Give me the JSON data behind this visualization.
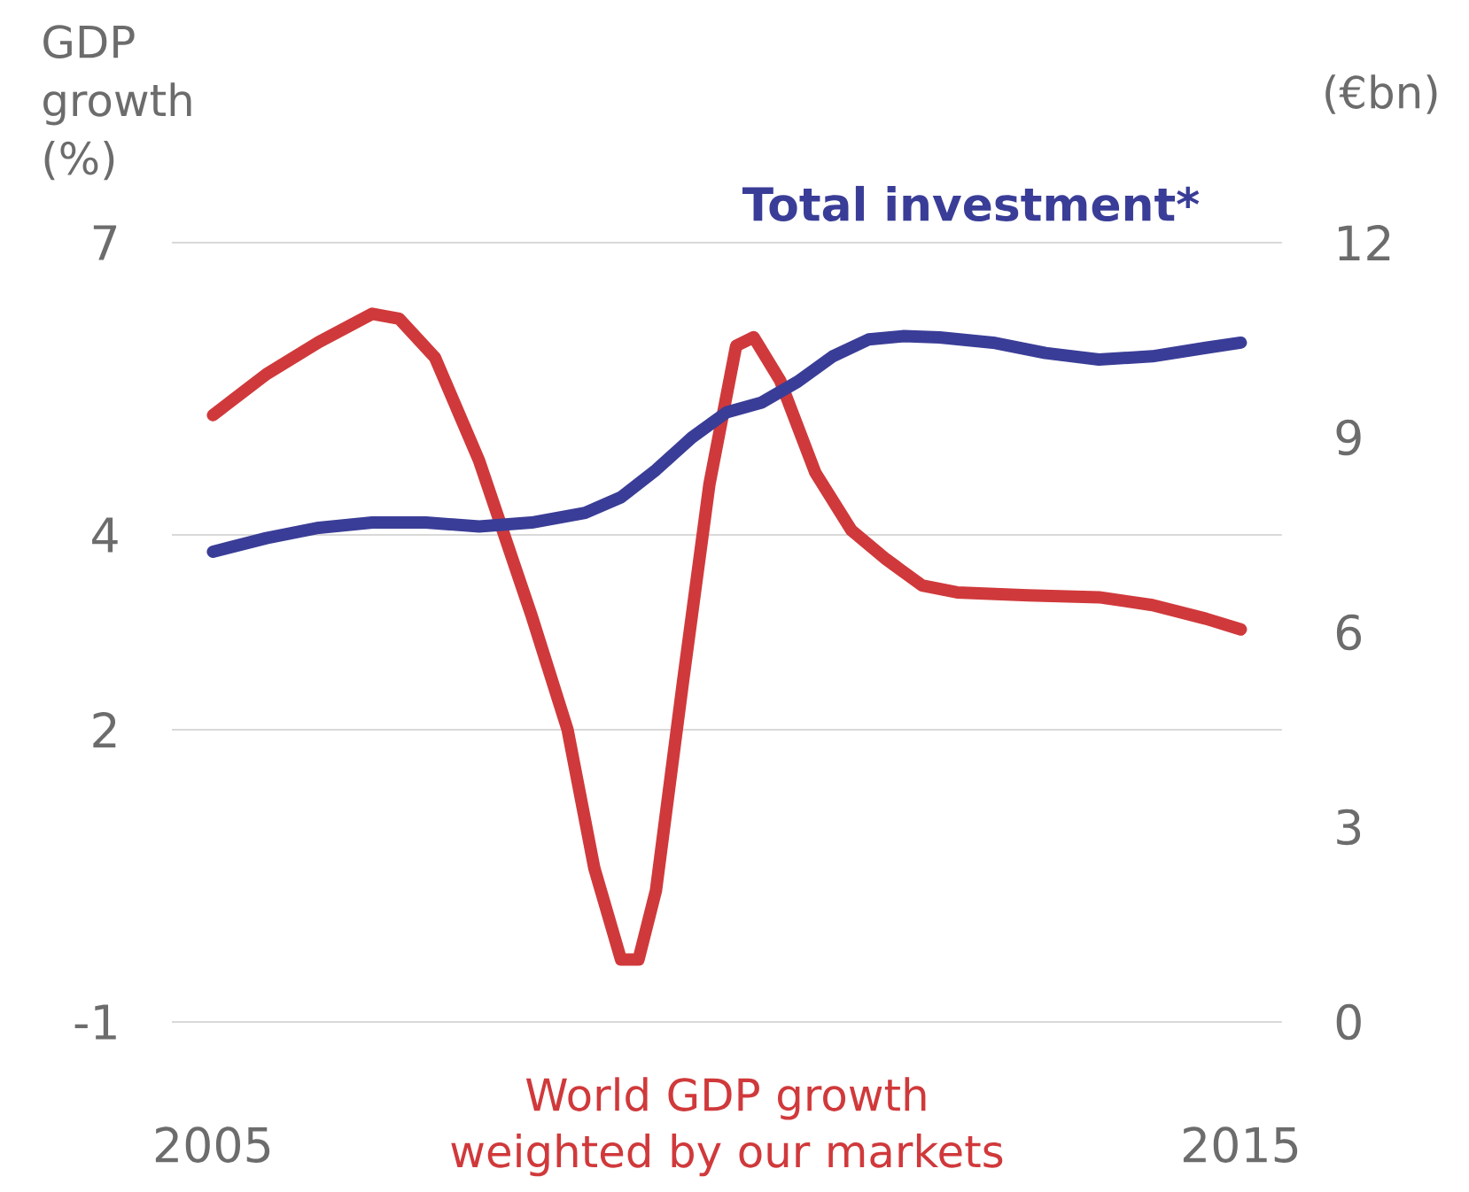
{
  "chart_data": {
    "type": "line",
    "ylabel": "GDP growth (%)",
    "y2label": "(€bn)",
    "xlim": [
      2004.6,
      2015.4
    ],
    "xticks": [
      2005,
      2015
    ],
    "ylim": [
      -1,
      7
    ],
    "yticks": [
      -1,
      2,
      4,
      7
    ],
    "y2lim": [
      0,
      12
    ],
    "y2ticks": [
      0,
      3,
      6,
      9,
      12
    ],
    "grid": "y",
    "series": [
      {
        "name": "World GDP growth weighted by our markets",
        "color": "#d0393b",
        "axis": "y",
        "x": [
          2005,
          2005.52,
          2006.03,
          2006.55,
          2006.81,
          2007.16,
          2007.59,
          2008.1,
          2008.45,
          2008.71,
          2008.97,
          2009.14,
          2009.31,
          2009.57,
          2009.83,
          2010.09,
          2010.26,
          2010.52,
          2010.86,
          2011.21,
          2011.55,
          2011.9,
          2012.24,
          2012.93,
          2013.62,
          2014.14,
          2014.66,
          2015
        ],
        "values": [
          5.23,
          5.65,
          5.98,
          6.27,
          6.22,
          5.82,
          4.76,
          3.17,
          2.0,
          0.58,
          -0.36,
          -0.36,
          0.35,
          2.47,
          4.52,
          5.94,
          6.03,
          5.58,
          4.64,
          4.05,
          3.75,
          3.48,
          3.41,
          3.38,
          3.36,
          3.28,
          3.14,
          3.03
        ]
      },
      {
        "name": "Total investment*",
        "color": "#3a3d97",
        "axis": "y2",
        "x": [
          2005,
          2005.52,
          2006.03,
          2006.55,
          2007.07,
          2007.59,
          2008.1,
          2008.62,
          2008.97,
          2009.31,
          2009.66,
          2010.0,
          2010.34,
          2010.69,
          2011.03,
          2011.38,
          2011.72,
          2012.07,
          2012.59,
          2013.1,
          2013.62,
          2014.14,
          2014.66,
          2015
        ],
        "values": [
          7.24,
          7.45,
          7.61,
          7.69,
          7.69,
          7.63,
          7.69,
          7.84,
          8.08,
          8.5,
          9.0,
          9.39,
          9.54,
          9.86,
          10.25,
          10.51,
          10.56,
          10.54,
          10.46,
          10.3,
          10.2,
          10.25,
          10.38,
          10.46
        ]
      }
    ]
  }
}
